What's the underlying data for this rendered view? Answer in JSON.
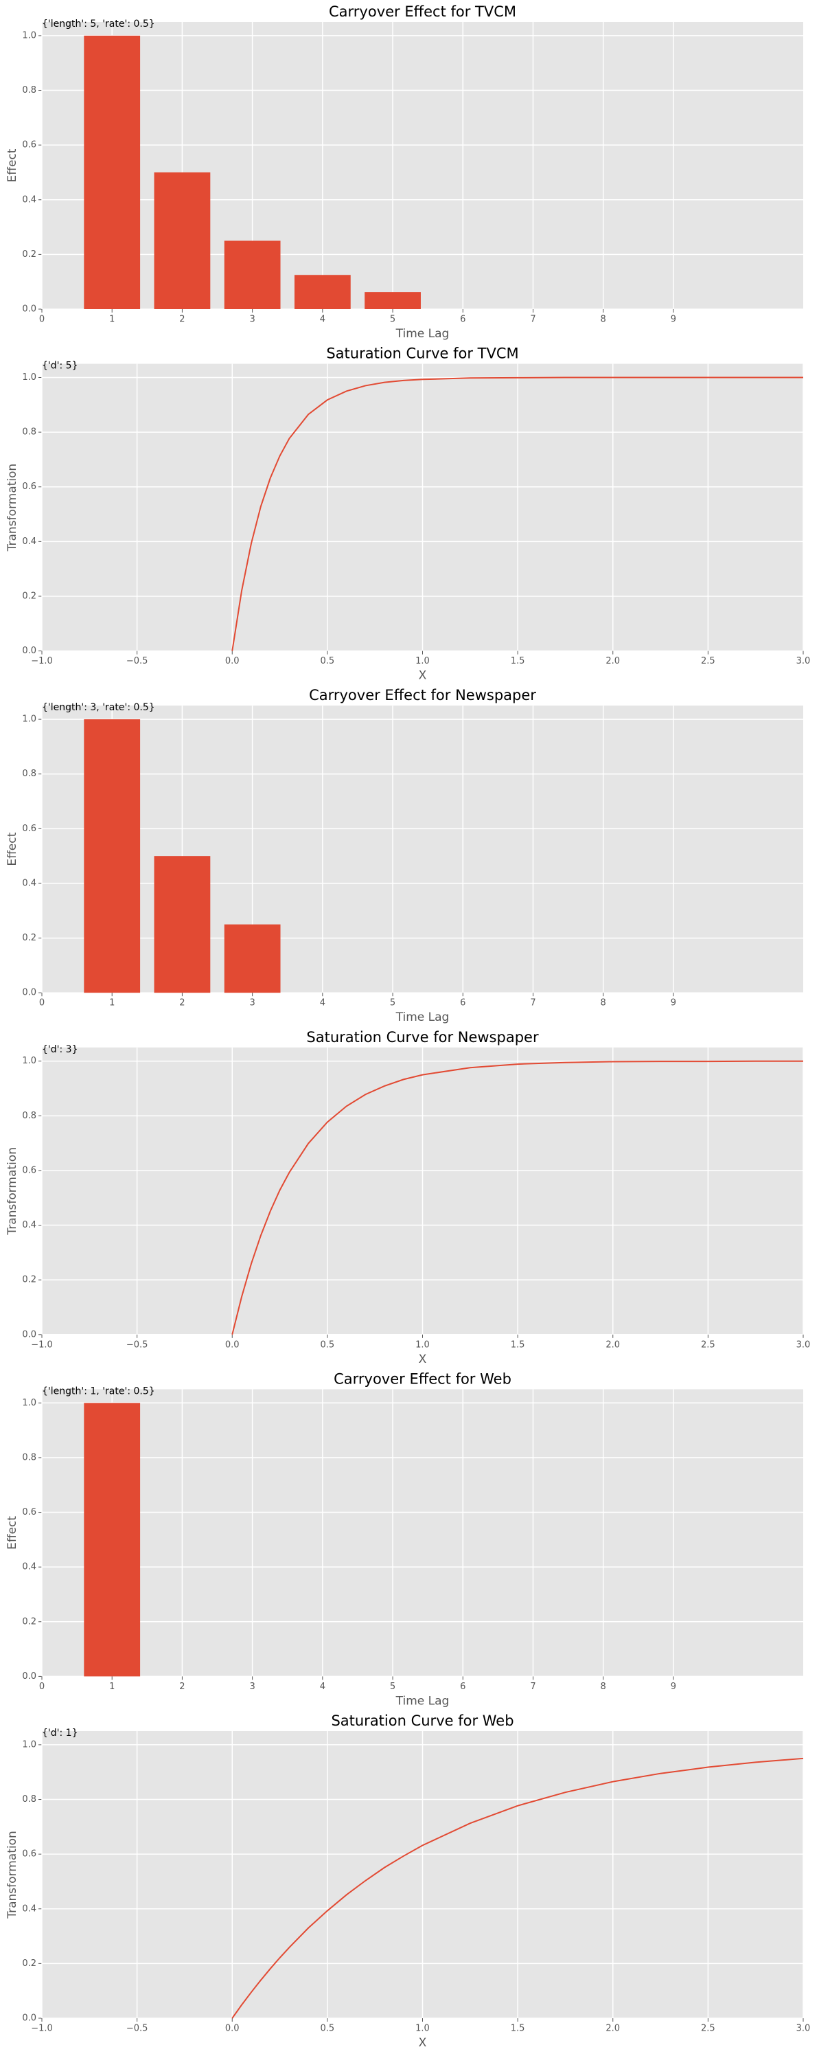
{
  "chart_data": [
    {
      "type": "bar",
      "title": "Carryover Effect for TVCM",
      "annotation": "{'length': 5, 'rate': 0.5}",
      "xlabel": "Time Lag",
      "ylabel": "Effect",
      "color": "#e24a33",
      "x": [
        1,
        2,
        3,
        4,
        5
      ],
      "values": [
        1,
        0.5,
        0.25,
        0.125,
        0.0625
      ],
      "xlim": [
        0,
        10.85
      ],
      "xticks": [
        0,
        1,
        2,
        3,
        4,
        5,
        6,
        7,
        8,
        9
      ],
      "ylim": [
        0,
        1.05
      ],
      "yticks": [
        {
          "value": 0,
          "label": "0.0"
        },
        0.2,
        0.4,
        0.6,
        0.8,
        {
          "value": 1,
          "label": "1.0"
        }
      ],
      "grid": true
    },
    {
      "type": "line",
      "title": "Saturation Curve for TVCM",
      "annotation": "{'d': 5}",
      "xlabel": "X",
      "ylabel": "Transformation",
      "color": "#e24a33",
      "x": [
        0,
        0.05,
        0.1,
        0.15,
        0.2,
        0.25,
        0.3,
        0.4,
        0.5,
        0.6,
        0.7,
        0.8,
        0.9,
        1.0,
        1.25,
        1.5,
        1.75,
        2.0,
        2.25,
        2.5,
        2.75,
        3.0
      ],
      "values": [
        0,
        0.221,
        0.393,
        0.528,
        0.632,
        0.713,
        0.777,
        0.865,
        0.918,
        0.95,
        0.97,
        0.982,
        0.989,
        0.993,
        0.998,
        0.999,
        1,
        1,
        1,
        1,
        1,
        1
      ],
      "xlim": [
        -1,
        3
      ],
      "xticks": [
        {
          "value": -1,
          "label": "−1.0"
        },
        {
          "value": -0.5,
          "label": "−0.5"
        },
        {
          "value": 0,
          "label": "0.0"
        },
        0.5,
        {
          "value": 1,
          "label": "1.0"
        },
        1.5,
        {
          "value": 2,
          "label": "2.0"
        },
        2.5,
        {
          "value": 3,
          "label": "3.0"
        }
      ],
      "ylim": [
        0,
        1.05
      ],
      "yticks": [
        {
          "value": 0,
          "label": "0.0"
        },
        0.2,
        0.4,
        0.6,
        0.8,
        {
          "value": 1,
          "label": "1.0"
        }
      ],
      "grid": true
    },
    {
      "type": "bar",
      "title": "Carryover Effect for Newspaper",
      "annotation": "{'length': 3, 'rate': 0.5}",
      "xlabel": "Time Lag",
      "ylabel": "Effect",
      "color": "#e24a33",
      "x": [
        1,
        2,
        3
      ],
      "values": [
        1,
        0.5,
        0.25
      ],
      "xlim": [
        0,
        10.85
      ],
      "xticks": [
        0,
        1,
        2,
        3,
        4,
        5,
        6,
        7,
        8,
        9
      ],
      "ylim": [
        0,
        1.05
      ],
      "yticks": [
        {
          "value": 0,
          "label": "0.0"
        },
        0.2,
        0.4,
        0.6,
        0.8,
        {
          "value": 1,
          "label": "1.0"
        }
      ],
      "grid": true
    },
    {
      "type": "line",
      "title": "Saturation Curve for Newspaper",
      "annotation": "{'d': 3}",
      "xlabel": "X",
      "ylabel": "Transformation",
      "color": "#e24a33",
      "x": [
        0,
        0.05,
        0.1,
        0.15,
        0.2,
        0.25,
        0.3,
        0.4,
        0.5,
        0.6,
        0.7,
        0.8,
        0.9,
        1.0,
        1.25,
        1.5,
        1.75,
        2.0,
        2.25,
        2.5,
        2.75,
        3.0
      ],
      "values": [
        0,
        0.139,
        0.259,
        0.362,
        0.451,
        0.528,
        0.593,
        0.699,
        0.777,
        0.835,
        0.878,
        0.909,
        0.933,
        0.95,
        0.976,
        0.989,
        0.995,
        0.998,
        0.999,
        0.999,
        1,
        1
      ],
      "xlim": [
        -1,
        3
      ],
      "xticks": [
        {
          "value": -1,
          "label": "−1.0"
        },
        {
          "value": -0.5,
          "label": "−0.5"
        },
        {
          "value": 0,
          "label": "0.0"
        },
        0.5,
        {
          "value": 1,
          "label": "1.0"
        },
        1.5,
        {
          "value": 2,
          "label": "2.0"
        },
        2.5,
        {
          "value": 3,
          "label": "3.0"
        }
      ],
      "ylim": [
        0,
        1.05
      ],
      "yticks": [
        {
          "value": 0,
          "label": "0.0"
        },
        0.2,
        0.4,
        0.6,
        0.8,
        {
          "value": 1,
          "label": "1.0"
        }
      ],
      "grid": true
    },
    {
      "type": "bar",
      "title": "Carryover Effect for Web",
      "annotation": "{'length': 1, 'rate': 0.5}",
      "xlabel": "Time Lag",
      "ylabel": "Effect",
      "color": "#e24a33",
      "x": [
        1
      ],
      "values": [
        1
      ],
      "xlim": [
        0,
        10.85
      ],
      "xticks": [
        0,
        1,
        2,
        3,
        4,
        5,
        6,
        7,
        8,
        9
      ],
      "ylim": [
        0,
        1.05
      ],
      "yticks": [
        {
          "value": 0,
          "label": "0.0"
        },
        0.2,
        0.4,
        0.6,
        0.8,
        {
          "value": 1,
          "label": "1.0"
        }
      ],
      "grid": true
    },
    {
      "type": "line",
      "title": "Saturation Curve for Web",
      "annotation": "{'d': 1}",
      "xlabel": "X",
      "ylabel": "Transformation",
      "color": "#e24a33",
      "x": [
        0,
        0.05,
        0.1,
        0.15,
        0.2,
        0.25,
        0.3,
        0.4,
        0.5,
        0.6,
        0.7,
        0.8,
        0.9,
        1.0,
        1.25,
        1.5,
        1.75,
        2.0,
        2.25,
        2.5,
        2.75,
        3.0
      ],
      "values": [
        0,
        0.049,
        0.095,
        0.139,
        0.181,
        0.221,
        0.259,
        0.33,
        0.393,
        0.451,
        0.503,
        0.551,
        0.593,
        0.632,
        0.713,
        0.777,
        0.826,
        0.865,
        0.895,
        0.918,
        0.936,
        0.95
      ],
      "xlim": [
        -1,
        3
      ],
      "xticks": [
        {
          "value": -1,
          "label": "−1.0"
        },
        {
          "value": -0.5,
          "label": "−0.5"
        },
        {
          "value": 0,
          "label": "0.0"
        },
        0.5,
        {
          "value": 1,
          "label": "1.0"
        },
        1.5,
        {
          "value": 2,
          "label": "2.0"
        },
        2.5,
        {
          "value": 3,
          "label": "3.0"
        }
      ],
      "ylim": [
        0,
        1.05
      ],
      "yticks": [
        {
          "value": 0,
          "label": "0.0"
        },
        0.2,
        0.4,
        0.6,
        0.8,
        {
          "value": 1,
          "label": "1.0"
        }
      ],
      "grid": true
    }
  ]
}
